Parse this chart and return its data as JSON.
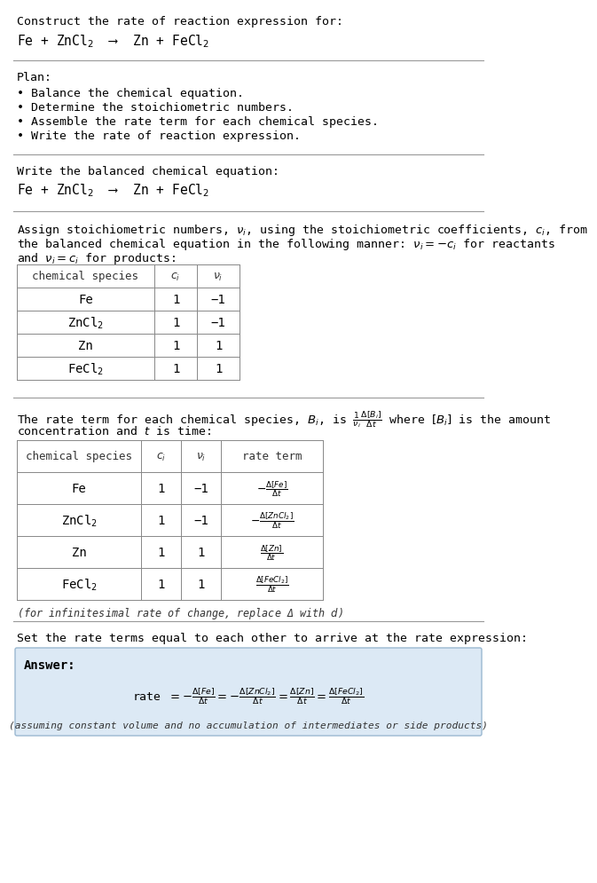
{
  "bg_color": "#ffffff",
  "text_color": "#000000",
  "title_line1": "Construct the rate of reaction expression for:",
  "equation1": "Fe + ZnCl$_2$  ⟶  Zn + FeCl$_2$",
  "plan_header": "Plan:",
  "plan_items": [
    "• Balance the chemical equation.",
    "• Determine the stoichiometric numbers.",
    "• Assemble the rate term for each chemical species.",
    "• Write the rate of reaction expression."
  ],
  "section2_header": "Write the balanced chemical equation:",
  "section2_eq": "Fe + ZnCl$_2$  ⟶  Zn + FeCl$_2$",
  "section3_intro1": "Assign stoichiometric numbers, $\\nu_i$, using the stoichiometric coefficients, $c_i$, from",
  "section3_intro2": "the balanced chemical equation in the following manner: $\\nu_i = -c_i$ for reactants",
  "section3_intro3": "and $\\nu_i = c_i$ for products:",
  "table1_headers": [
    "chemical species",
    "$c_i$",
    "$\\nu_i$"
  ],
  "table1_rows": [
    [
      "Fe",
      "1",
      "−1"
    ],
    [
      "ZnCl$_2$",
      "1",
      "−1"
    ],
    [
      "Zn",
      "1",
      "1"
    ],
    [
      "FeCl$_2$",
      "1",
      "1"
    ]
  ],
  "section4_intro1": "The rate term for each chemical species, $B_i$, is $\\frac{1}{\\nu_i}\\frac{\\Delta[B_i]}{\\Delta t}$ where $[B_i]$ is the amount",
  "section4_intro2": "concentration and $t$ is time:",
  "table2_headers": [
    "chemical species",
    "$c_i$",
    "$\\nu_i$",
    "rate term"
  ],
  "table2_rows": [
    [
      "Fe",
      "1",
      "−1",
      "$-\\frac{\\Delta[Fe]}{\\Delta t}$"
    ],
    [
      "ZnCl$_2$",
      "1",
      "−1",
      "$-\\frac{\\Delta[ZnCl_2]}{\\Delta t}$"
    ],
    [
      "Zn",
      "1",
      "1",
      "$\\frac{\\Delta[Zn]}{\\Delta t}$"
    ],
    [
      "FeCl$_2$",
      "1",
      "1",
      "$\\frac{\\Delta[FeCl_2]}{\\Delta t}$"
    ]
  ],
  "infinitesimal_note": "(for infinitesimal rate of change, replace Δ with $d$)",
  "section5_header": "Set the rate terms equal to each other to arrive at the rate expression:",
  "answer_box_color": "#dce9f5",
  "answer_box_border": "#9ab8d0",
  "answer_label": "Answer:",
  "answer_rate_expr": "rate $= -\\frac{\\Delta[Fe]}{\\Delta t} = -\\frac{\\Delta[ZnCl_2]}{\\Delta t} = \\frac{\\Delta[Zn]}{\\Delta t} = \\frac{\\Delta[FeCl_2]}{\\Delta t}$",
  "answer_note": "(assuming constant volume and no accumulation of intermediates or side products)",
  "hline_color": "#999999",
  "table_line_color": "#888888",
  "mono_font": "DejaVu Sans Mono",
  "serif_font": "DejaVu Serif"
}
